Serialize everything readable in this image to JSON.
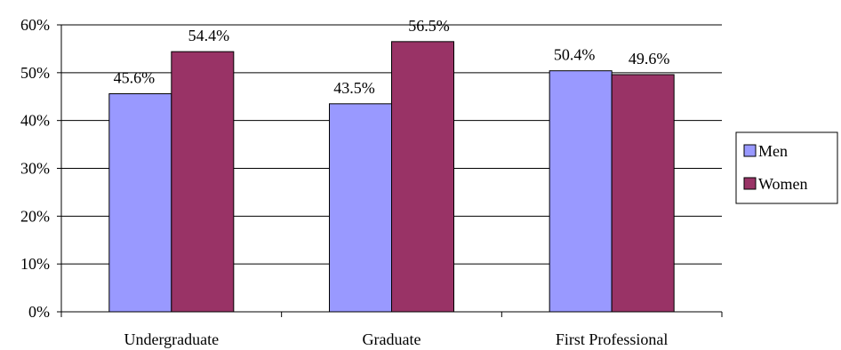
{
  "chart_data": {
    "type": "bar",
    "categories": [
      "Undergraduate",
      "Graduate",
      "First Professional"
    ],
    "series": [
      {
        "name": "Men",
        "values": [
          45.6,
          43.5,
          50.4
        ],
        "labels": [
          "45.6%",
          "43.5%",
          "50.4%"
        ],
        "color": "#9999ff"
      },
      {
        "name": "Women",
        "values": [
          54.4,
          56.5,
          49.6
        ],
        "labels": [
          "54.4%",
          "56.5%",
          "49.6%"
        ],
        "color": "#993366"
      }
    ],
    "y_ticks": [
      "0%",
      "10%",
      "20%",
      "30%",
      "40%",
      "50%",
      "60%"
    ],
    "ylim": [
      0,
      60
    ],
    "grid": true,
    "legend_position": "right"
  }
}
